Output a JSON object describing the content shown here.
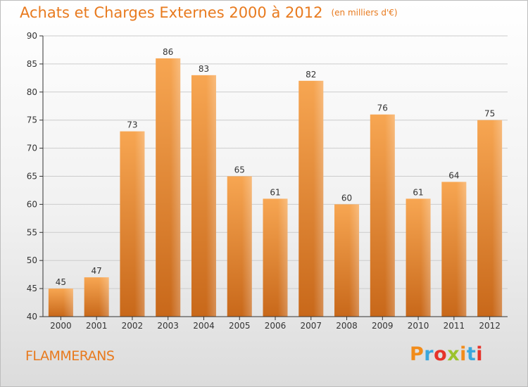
{
  "header": {
    "title": "Achats et Charges Externes 2000 à 2012",
    "subtitle": "(en milliers d'€)"
  },
  "footer": {
    "city": "FLAMMERANS",
    "logo_text": "Proxiti",
    "logo_colors": [
      "#f28c1a",
      "#3aa7dc",
      "#e6332a",
      "#9cc32d",
      "#f28c1a",
      "#3aa7dc",
      "#e6332a"
    ]
  },
  "colors": {
    "bar_top": "#f7a652",
    "bar_bottom": "#c8681a",
    "accent": "#e87a1e",
    "axis": "#333333",
    "grid": "#cccccc"
  },
  "chart_data": {
    "type": "bar",
    "title": "Achats et Charges Externes 2000 à 2012",
    "subtitle": "(en milliers d'€)",
    "categories": [
      "2000",
      "2001",
      "2002",
      "2003",
      "2004",
      "2005",
      "2006",
      "2007",
      "2008",
      "2009",
      "2010",
      "2011",
      "2012"
    ],
    "values": [
      45,
      47,
      73,
      86,
      83,
      65,
      61,
      82,
      60,
      76,
      61,
      64,
      75
    ],
    "ylim": [
      40,
      90
    ],
    "yticks": [
      40,
      45,
      50,
      55,
      60,
      65,
      70,
      75,
      80,
      85,
      90
    ],
    "xlabel": "",
    "ylabel": "",
    "grid": true,
    "legend": "none"
  }
}
